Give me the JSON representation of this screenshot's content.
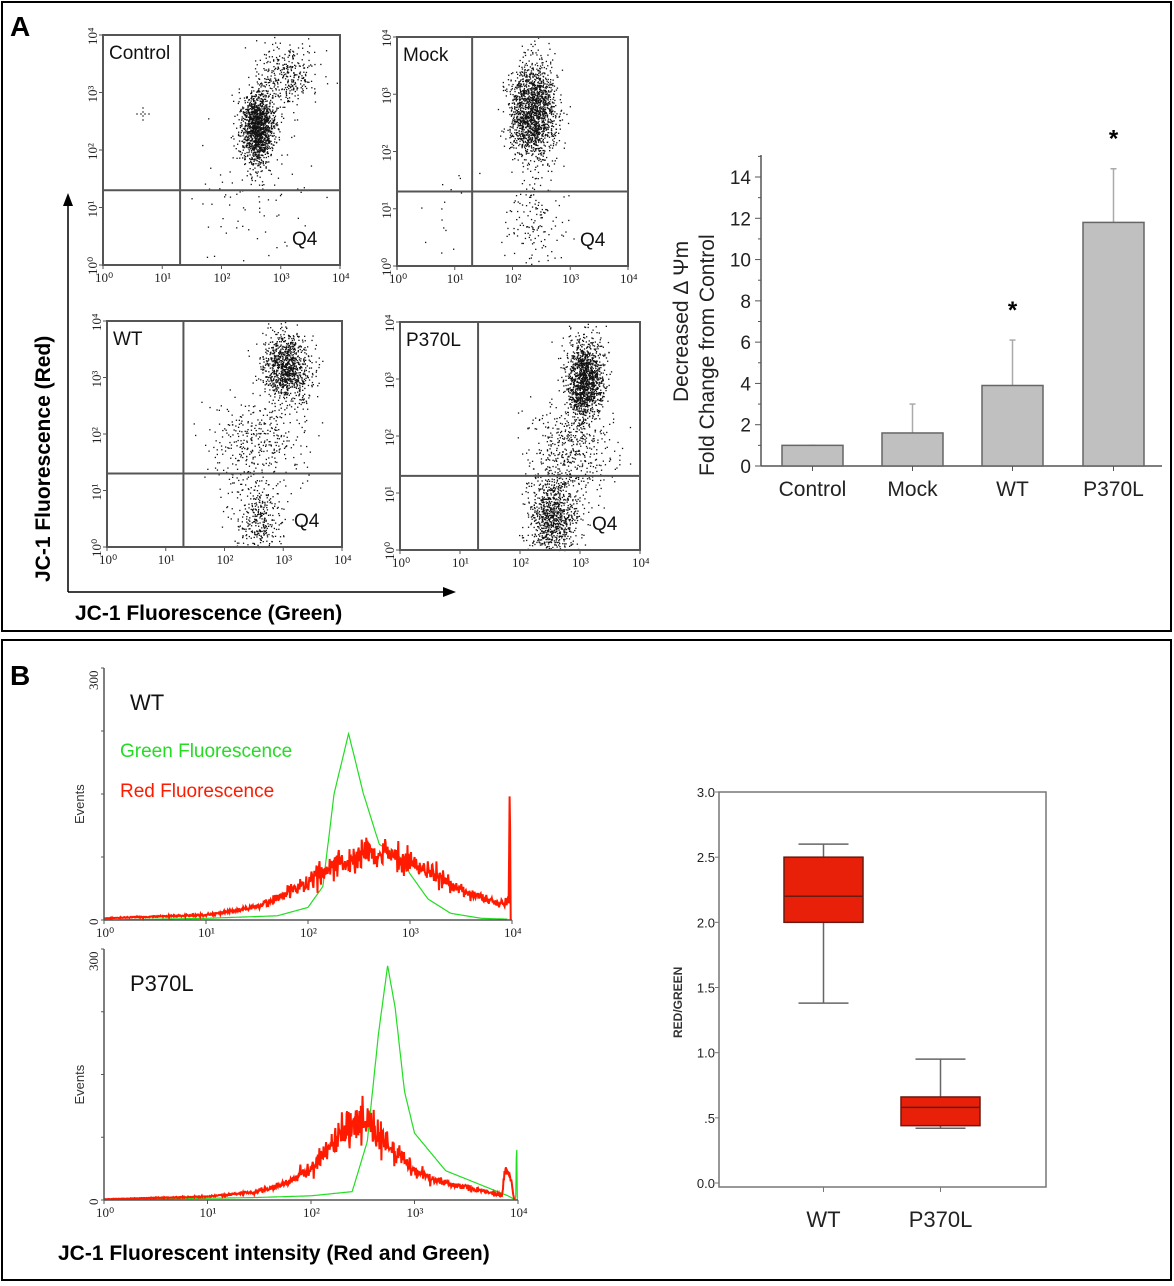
{
  "panels": {
    "a_label": "A",
    "b_label": "B"
  },
  "colors": {
    "green": "#22dd22",
    "red": "#ff1a00",
    "bar": "#c0c0c0",
    "box": "#e8200a"
  },
  "chart_data": [
    {
      "type": "scatter",
      "panel": "A",
      "xlabel": "JC-1 Fluorescence (Green)",
      "ylabel": "JC-1 Fluorescence (Red)",
      "scale": "log",
      "xlim": [
        1,
        10000
      ],
      "ylim": [
        1,
        10000
      ],
      "tick_labels": [
        "10⁰",
        "10¹",
        "10²",
        "10³",
        "10⁴"
      ],
      "gates": {
        "green": 20,
        "red": 20
      },
      "plots": [
        {
          "title": "Control",
          "quadrant_label": "Q4",
          "populations": [
            {
              "green": 400,
              "red": 250,
              "spread_green": 0.14,
              "spread_red": 0.33,
              "n": 1400
            },
            {
              "green": 1200,
              "red": 2000,
              "spread_green": 0.25,
              "spread_red": 0.3,
              "n": 350
            },
            {
              "green": 300,
              "red": 20,
              "spread_green": 0.5,
              "spread_red": 0.6,
              "n": 90
            }
          ]
        },
        {
          "title": "Mock",
          "quadrant_label": "Q4",
          "populations": [
            {
              "green": 220,
              "red": 500,
              "spread_green": 0.2,
              "spread_red": 0.42,
              "n": 1700
            },
            {
              "green": 250,
              "red": 5,
              "spread_green": 0.3,
              "spread_red": 0.4,
              "n": 140
            },
            {
              "green": 8,
              "red": 8,
              "spread_green": 0.2,
              "spread_red": 0.4,
              "n": 15
            }
          ]
        },
        {
          "title": "WT",
          "quadrant_label": "Q4",
          "populations": [
            {
              "green": 1100,
              "red": 1500,
              "spread_green": 0.2,
              "spread_red": 0.3,
              "n": 1000
            },
            {
              "green": 400,
              "red": 3,
              "spread_green": 0.2,
              "spread_red": 0.3,
              "n": 300
            },
            {
              "green": 350,
              "red": 60,
              "spread_green": 0.4,
              "spread_red": 0.5,
              "n": 400
            }
          ]
        },
        {
          "title": "P370L",
          "quadrant_label": "Q4",
          "populations": [
            {
              "green": 1200,
              "red": 1000,
              "spread_green": 0.15,
              "spread_red": 0.35,
              "n": 1300
            },
            {
              "green": 350,
              "red": 4,
              "spread_green": 0.2,
              "spread_red": 0.35,
              "n": 900
            },
            {
              "green": 700,
              "red": 60,
              "spread_green": 0.35,
              "spread_red": 0.5,
              "n": 500
            }
          ]
        }
      ]
    },
    {
      "type": "bar",
      "panel": "A",
      "categories": [
        "Control",
        "Mock",
        "WT",
        "P370L"
      ],
      "values": [
        1.0,
        1.6,
        3.9,
        11.8
      ],
      "error_upper": [
        1.0,
        3.0,
        6.1,
        14.4
      ],
      "significance": [
        "",
        "",
        "*",
        "*"
      ],
      "ylabel_line1": "Decreased Δ Ψm",
      "ylabel_line2": "Fold Change from Control",
      "ylim": [
        0,
        15
      ],
      "yticks": [
        "0",
        "2",
        "4",
        "6",
        "8",
        "10",
        "12",
        "14"
      ]
    },
    {
      "type": "line",
      "panel": "B",
      "xlabel": "JC-1 Fluorescent intensity (Red and Green)",
      "ylabel": "Events",
      "xscale": "log",
      "xlim": [
        1,
        10000
      ],
      "ylim": [
        0,
        300
      ],
      "xtick_labels": [
        "10⁰",
        "10¹",
        "10²",
        "10³",
        "10⁴"
      ],
      "ytick_labels": [
        "0",
        "300"
      ],
      "legend": {
        "green": "Green Fluorescence",
        "red": "Red Fluorescence"
      },
      "plots": [
        {
          "title": "WT",
          "series": [
            {
              "name": "Green Fluorescence",
              "color": "green",
              "points": [
                [
                  1,
                  0
                ],
                [
                  10,
                  2
                ],
                [
                  50,
                  5
                ],
                [
                  100,
                  15
                ],
                [
                  140,
                  40
                ],
                [
                  180,
                  150
                ],
                [
                  250,
                  222
                ],
                [
                  350,
                  150
                ],
                [
                  500,
                  90
                ],
                [
                  800,
                  75
                ],
                [
                  1000,
                  55
                ],
                [
                  1500,
                  25
                ],
                [
                  2500,
                  8
                ],
                [
                  5000,
                  2
                ],
                [
                  9000,
                  1
                ]
              ]
            },
            {
              "name": "Red Fluorescence",
              "color": "red",
              "points": [
                [
                  1,
                  2
                ],
                [
                  10,
                  6
                ],
                [
                  30,
                  15
                ],
                [
                  60,
                  30
                ],
                [
                  100,
                  45
                ],
                [
                  200,
                  68
                ],
                [
                  400,
                  80
                ],
                [
                  600,
                  82
                ],
                [
                  1000,
                  70
                ],
                [
                  2000,
                  50
                ],
                [
                  4000,
                  30
                ],
                [
                  8000,
                  20
                ],
                [
                  9300,
                  20
                ],
                [
                  9500,
                  190
                ],
                [
                  9700,
                  0
                ]
              ]
            }
          ]
        },
        {
          "title": "P370L",
          "series": [
            {
              "name": "Green Fluorescence",
              "color": "green",
              "points": [
                [
                  1,
                  0
                ],
                [
                  30,
                  3
                ],
                [
                  100,
                  5
                ],
                [
                  250,
                  10
                ],
                [
                  350,
                  70
                ],
                [
                  450,
                  200
                ],
                [
                  550,
                  280
                ],
                [
                  650,
                  230
                ],
                [
                  800,
                  130
                ],
                [
                  1000,
                  80
                ],
                [
                  2000,
                  35
                ],
                [
                  4000,
                  20
                ],
                [
                  8000,
                  5
                ],
                [
                  9500,
                  0
                ],
                [
                  9700,
                  80
                ],
                [
                  9850,
                  0
                ]
              ]
            },
            {
              "name": "Red Fluorescence",
              "color": "red",
              "points": [
                [
                  1,
                  1
                ],
                [
                  10,
                  4
                ],
                [
                  30,
                  10
                ],
                [
                  60,
                  20
                ],
                [
                  100,
                  40
                ],
                [
                  200,
                  80
                ],
                [
                  300,
                  95
                ],
                [
                  400,
                  85
                ],
                [
                  600,
                  60
                ],
                [
                  1000,
                  35
                ],
                [
                  2000,
                  20
                ],
                [
                  5000,
                  10
                ],
                [
                  7000,
                  5
                ],
                [
                  7500,
                  40
                ],
                [
                  8500,
                  25
                ],
                [
                  9200,
                  0
                ]
              ]
            }
          ]
        }
      ]
    },
    {
      "type": "box",
      "panel": "B",
      "categories": [
        "WT",
        "P370L"
      ],
      "ylabel": "RED/GREEN",
      "ylim": [
        0,
        3
      ],
      "yticks": [
        "0.0",
        ".5",
        "1.0",
        "1.5",
        "2.0",
        "2.5",
        "3.0"
      ],
      "boxes": [
        {
          "min": 1.38,
          "q1": 2.0,
          "median": 2.2,
          "q3": 2.5,
          "max": 2.6
        },
        {
          "min": 0.42,
          "q1": 0.44,
          "median": 0.58,
          "q3": 0.66,
          "max": 0.95
        }
      ]
    }
  ]
}
